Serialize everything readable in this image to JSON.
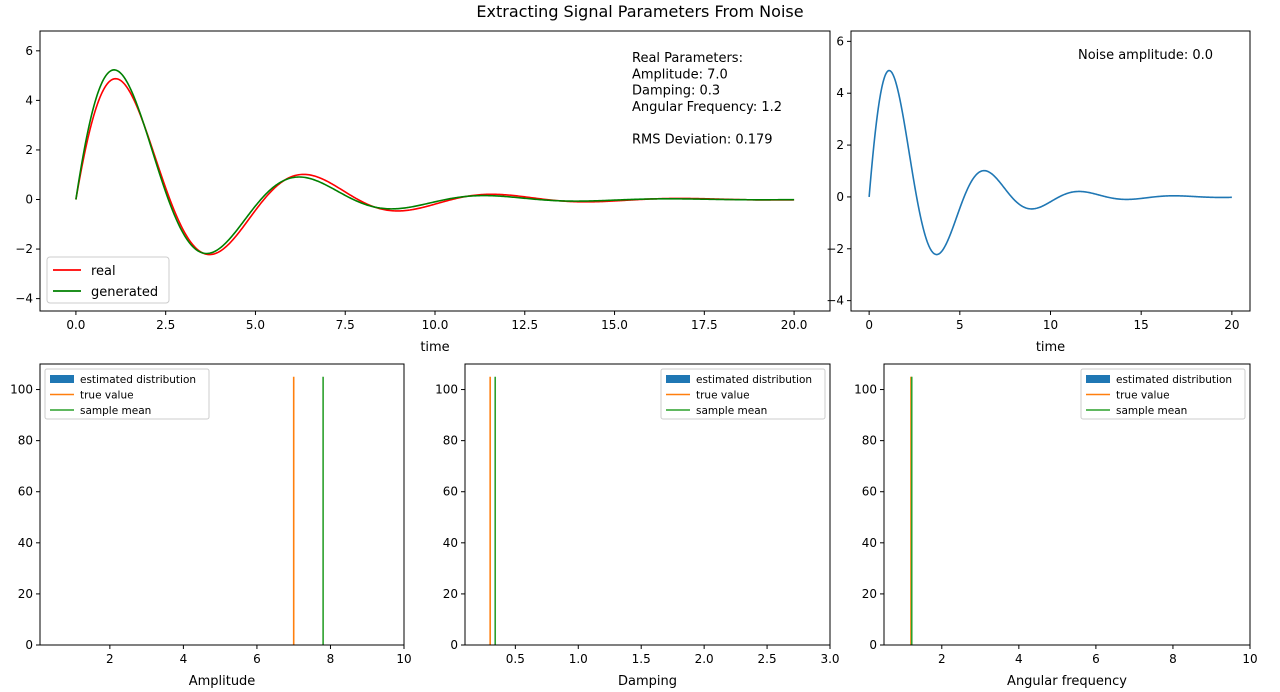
{
  "figure": {
    "title": "Extracting Signal Parameters From Noise"
  },
  "colors": {
    "real": "#ff0000",
    "generated": "#008000",
    "signal": "#1f77b4",
    "hist": "#1f77b4",
    "true_value": "#ff7f0e",
    "sample_mean": "#2ca02c"
  },
  "chart_data": [
    {
      "type": "line",
      "title": "",
      "xlabel": "time",
      "ylabel": "",
      "xlim": [
        -1.0,
        21.0
      ],
      "ylim": [
        -4.5,
        6.8
      ],
      "xticks": [
        0.0,
        2.5,
        5.0,
        7.5,
        10.0,
        12.5,
        15.0,
        17.5,
        20.0
      ],
      "xtick_labels": [
        "0.0",
        "2.5",
        "5.0",
        "7.5",
        "10.0",
        "12.5",
        "15.0",
        "17.5",
        "20.0"
      ],
      "yticks": [
        -4,
        -2,
        0,
        2,
        4,
        6
      ],
      "ytick_labels": [
        "−4",
        "−2",
        "0",
        "2",
        "4",
        "6"
      ],
      "legend": {
        "placement": "lower-left",
        "entries": [
          "real",
          "generated"
        ]
      },
      "annotation": [
        "Real Parameters:",
        "Amplitude: 7.0",
        "Damping: 0.3",
        "Angular Frequency: 1.2",
        "",
        "RMS Deviation: 0.179"
      ],
      "series": [
        {
          "name": "real",
          "model": "damped_sine",
          "amplitude": 7.0,
          "damping": 0.3,
          "angular_frequency": 1.2,
          "x_range": [
            0,
            20
          ]
        },
        {
          "name": "generated",
          "model": "damped_sine",
          "amplitude": 7.8,
          "damping": 0.34,
          "angular_frequency": 1.22,
          "x_range": [
            0,
            20
          ]
        }
      ]
    },
    {
      "type": "line",
      "title": "",
      "xlabel": "time",
      "ylabel": "",
      "xlim": [
        -1.0,
        21.0
      ],
      "ylim": [
        -4.4,
        6.4
      ],
      "xticks": [
        0,
        5,
        10,
        15,
        20
      ],
      "xtick_labels": [
        "0",
        "5",
        "10",
        "15",
        "20"
      ],
      "yticks": [
        -4,
        -2,
        0,
        2,
        4,
        6
      ],
      "ytick_labels": [
        "−4",
        "−2",
        "0",
        "2",
        "4",
        "6"
      ],
      "annotation": [
        "Noise amplitude: 0.0"
      ],
      "series": [
        {
          "model": "damped_sine",
          "amplitude": 7.0,
          "damping": 0.3,
          "angular_frequency": 1.2,
          "x_range": [
            0,
            20
          ]
        }
      ]
    },
    {
      "type": "bar",
      "title": "",
      "xlabel": "Amplitude",
      "ylabel": "",
      "xlim": [
        0.1,
        10.0
      ],
      "ylim": [
        0,
        110
      ],
      "xticks": [
        2,
        4,
        6,
        8,
        10
      ],
      "xtick_labels": [
        "2",
        "4",
        "6",
        "8",
        "10"
      ],
      "yticks": [
        0,
        20,
        40,
        60,
        80,
        100
      ],
      "ytick_labels": [
        "0",
        "20",
        "40",
        "60",
        "80",
        "100"
      ],
      "legend": {
        "placement": "top-left",
        "entries": [
          "estimated distribution",
          "true value",
          "sample mean"
        ]
      },
      "true_value": 7.0,
      "sample_mean": 7.8,
      "vline_height": 105
    },
    {
      "type": "bar",
      "title": "",
      "xlabel": "Damping",
      "ylabel": "",
      "xlim": [
        0.1,
        3.0
      ],
      "ylim": [
        0,
        110
      ],
      "xticks": [
        0.5,
        1.0,
        1.5,
        2.0,
        2.5,
        3.0
      ],
      "xtick_labels": [
        "0.5",
        "1.0",
        "1.5",
        "2.0",
        "2.5",
        "3.0"
      ],
      "yticks": [
        0,
        20,
        40,
        60,
        80,
        100
      ],
      "ytick_labels": [
        "0",
        "20",
        "40",
        "60",
        "80",
        "100"
      ],
      "legend": {
        "placement": "top-right",
        "entries": [
          "estimated distribution",
          "true value",
          "sample mean"
        ]
      },
      "true_value": 0.3,
      "sample_mean": 0.34,
      "vline_height": 105
    },
    {
      "type": "bar",
      "title": "",
      "xlabel": "Angular frequency",
      "ylabel": "",
      "xlim": [
        0.5,
        10.0
      ],
      "ylim": [
        0,
        110
      ],
      "xticks": [
        2,
        4,
        6,
        8,
        10
      ],
      "xtick_labels": [
        "2",
        "4",
        "6",
        "8",
        "10"
      ],
      "yticks": [
        0,
        20,
        40,
        60,
        80,
        100
      ],
      "ytick_labels": [
        "0",
        "20",
        "40",
        "60",
        "80",
        "100"
      ],
      "legend": {
        "placement": "top-right",
        "entries": [
          "estimated distribution",
          "true value",
          "sample mean"
        ]
      },
      "true_value": 1.2,
      "sample_mean": 1.22,
      "vline_height": 105
    }
  ]
}
